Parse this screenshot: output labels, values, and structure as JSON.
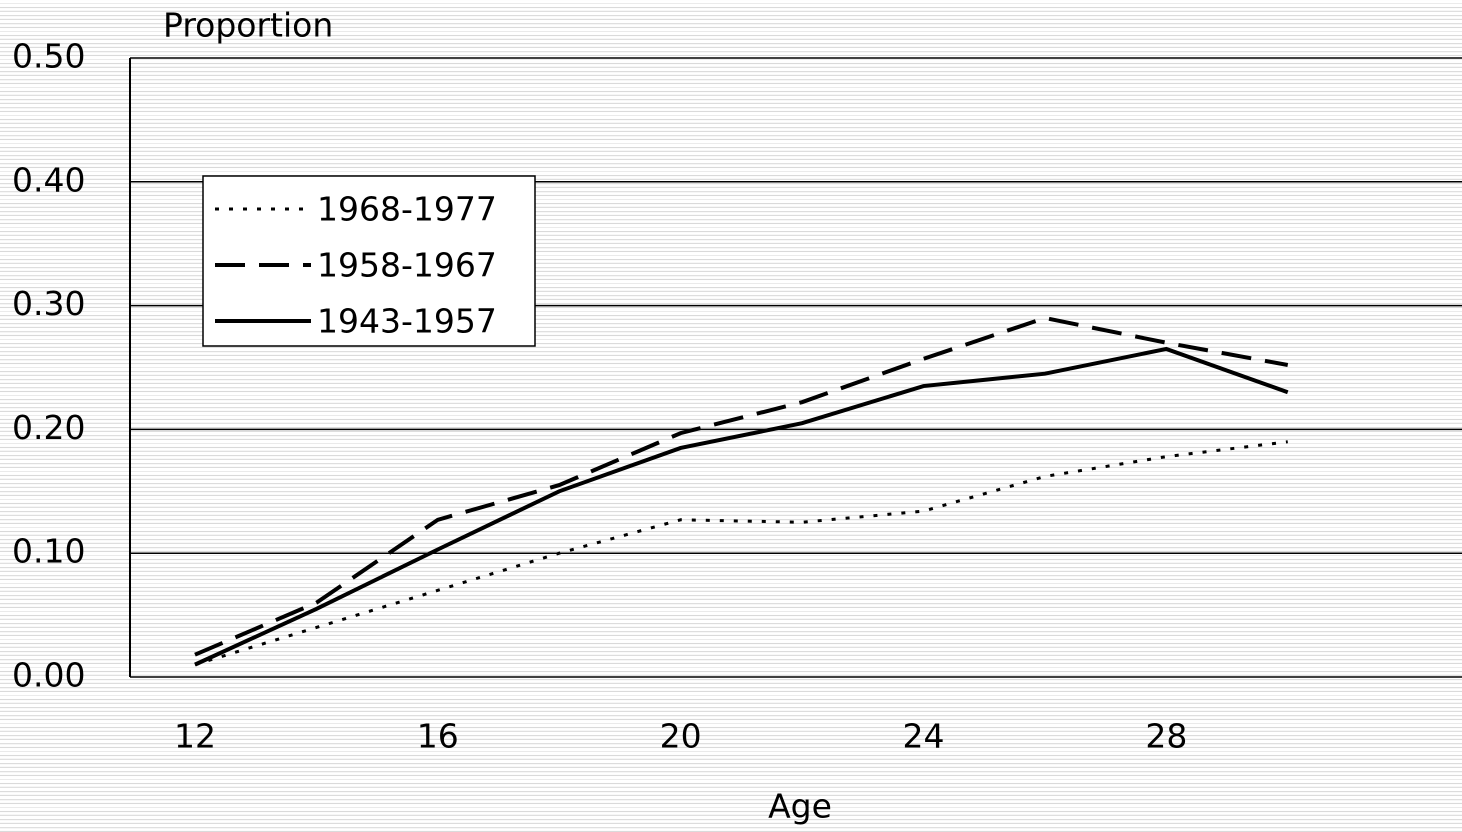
{
  "chart_data": {
    "type": "line",
    "title": "Proportion",
    "x_label": "Age",
    "x": [
      12,
      14,
      16,
      18,
      20,
      22,
      24,
      26,
      28,
      30
    ],
    "xlim": [
      10.93,
      32.87
    ],
    "xticks": [
      12,
      16,
      20,
      24,
      28
    ],
    "ylim": [
      0,
      0.5
    ],
    "yticks": [
      {
        "value": 0,
        "label": "0.00"
      },
      {
        "value": 0.1,
        "label": "0.10"
      },
      {
        "value": 0.2,
        "label": "0.20"
      },
      {
        "value": 0.3,
        "label": "0.30"
      },
      {
        "value": 0.4,
        "label": "0.40"
      },
      {
        "value": 0.5,
        "label": "0.50"
      }
    ],
    "grid": true,
    "legend": "upper-left",
    "series": [
      {
        "name": "1968-1977",
        "color": "#000000",
        "dash": "dotted",
        "values": [
          0.01,
          0.04,
          0.07,
          0.1,
          0.127,
          0.125,
          0.134,
          0.162,
          0.178,
          0.19
        ]
      },
      {
        "name": "1958-1967",
        "color": "#000000",
        "dash": "dashed",
        "values": [
          0.018,
          0.06,
          0.127,
          0.155,
          0.197,
          0.222,
          0.257,
          0.29,
          0.27,
          0.252
        ]
      },
      {
        "name": "1943-1957",
        "color": "#000000",
        "dash": "solid",
        "values": [
          0.01,
          0.055,
          0.103,
          0.15,
          0.185,
          0.205,
          0.235,
          0.245,
          0.265,
          0.23
        ]
      }
    ]
  }
}
